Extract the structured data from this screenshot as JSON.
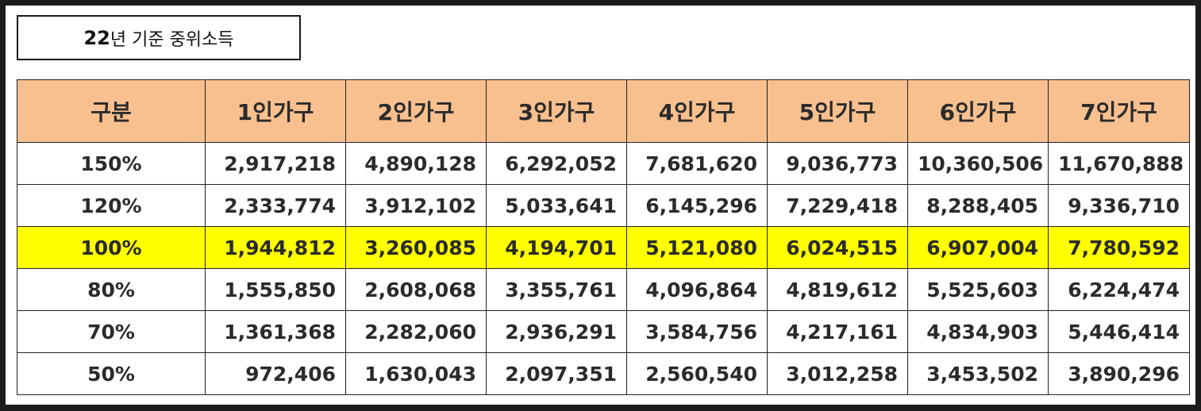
{
  "title": {
    "year": "22",
    "rest": "년 기준 중위소득"
  },
  "table": {
    "headers": [
      "구분",
      "1인가구",
      "2인가구",
      "3인가구",
      "4인가구",
      "5인가구",
      "6인가구",
      "7인가구"
    ],
    "highlight_color": "#ffff00",
    "header_color": "#f8c08f",
    "rows": [
      {
        "label": "150%",
        "values": [
          "2,917,218",
          "4,890,128",
          "6,292,052",
          "7,681,620",
          "9,036,773",
          "10,360,506",
          "11,670,888"
        ]
      },
      {
        "label": "120%",
        "values": [
          "2,333,774",
          "3,912,102",
          "5,033,641",
          "6,145,296",
          "7,229,418",
          "8,288,405",
          "9,336,710"
        ]
      },
      {
        "label": "100%",
        "values": [
          "1,944,812",
          "3,260,085",
          "4,194,701",
          "5,121,080",
          "6,024,515",
          "6,907,004",
          "7,780,592"
        ],
        "highlighted": true
      },
      {
        "label": "80%",
        "values": [
          "1,555,850",
          "2,608,068",
          "3,355,761",
          "4,096,864",
          "4,819,612",
          "5,525,603",
          "6,224,474"
        ]
      },
      {
        "label": "70%",
        "values": [
          "1,361,368",
          "2,282,060",
          "2,936,291",
          "3,584,756",
          "4,217,161",
          "4,834,903",
          "5,446,414"
        ]
      },
      {
        "label": "50%",
        "values": [
          "972,406",
          "1,630,043",
          "2,097,351",
          "2,560,540",
          "3,012,258",
          "3,453,502",
          "3,890,296"
        ]
      }
    ]
  }
}
